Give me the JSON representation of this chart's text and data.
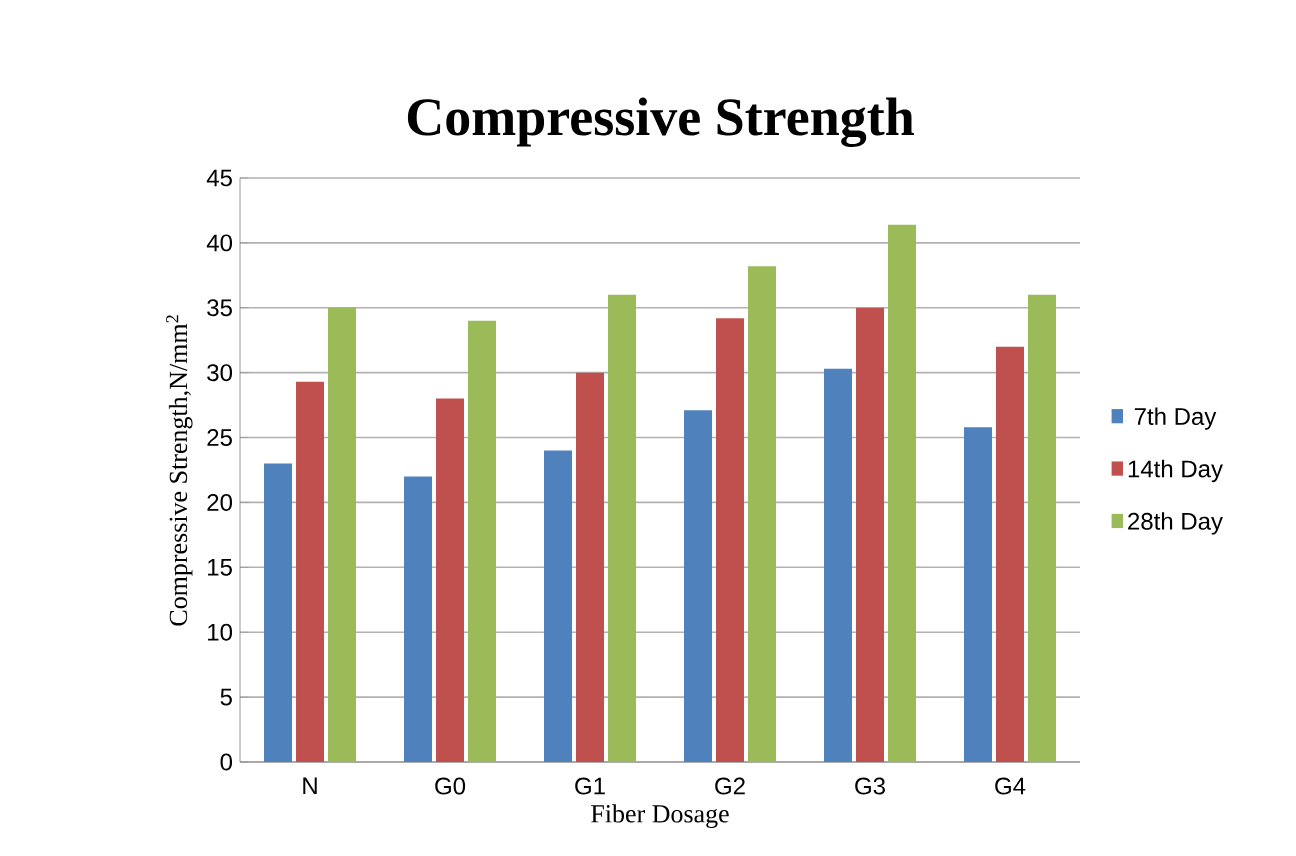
{
  "chart_data": {
    "type": "bar",
    "title": "Compressive Strength",
    "xlabel": "Fiber Dosage",
    "ylabel": "Compressive Strength,N/mm$^{2}$",
    "categories": [
      "N",
      "G0",
      "G1",
      "G2",
      "G3",
      "G4"
    ],
    "series": [
      {
        "name": "7th Day",
        "color": "#4f81bd",
        "values": [
          23,
          22,
          24,
          27.1,
          30.3,
          25.8
        ]
      },
      {
        "name": "14th Day",
        "color": "#c0504d",
        "values": [
          29.3,
          28,
          30,
          34.2,
          35,
          32
        ]
      },
      {
        "name": "28th Day",
        "color": "#9bbb59",
        "values": [
          35,
          34,
          36,
          38.2,
          41.4,
          36
        ]
      }
    ],
    "ylim": [
      0,
      45
    ],
    "yticks": [
      0,
      5,
      10,
      15,
      20,
      25,
      30,
      35,
      40,
      45
    ],
    "grid": "y",
    "legend": "right"
  }
}
